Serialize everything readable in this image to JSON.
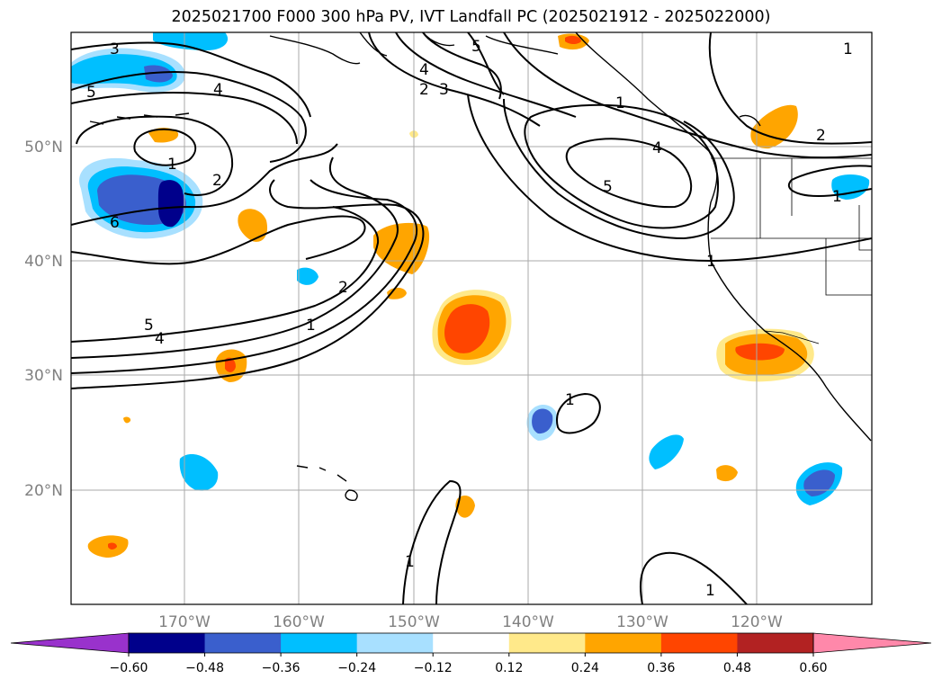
{
  "title": "2025021700 F000 300 hPa PV, IVT Landfall PC (2025021912 - 2025022000)",
  "map": {
    "lon_range": [
      -180,
      -110
    ],
    "lat_range": [
      10,
      60
    ],
    "lon_ticks": [
      "170°W",
      "160°W",
      "150°W",
      "140°W",
      "130°W",
      "120°W"
    ],
    "lat_ticks": [
      "50°N",
      "40°N",
      "30°N",
      "20°N"
    ],
    "grid": true,
    "contour_labels": [
      "3",
      "5",
      "4",
      "2",
      "3",
      "5",
      "4",
      "1",
      "5",
      "4",
      "1",
      "2",
      "6",
      "2",
      "5",
      "4",
      "1",
      "1",
      "2",
      "1",
      "1",
      "1",
      "1",
      "1"
    ]
  },
  "colorbar": {
    "levels": [
      "−0.60",
      "−0.48",
      "−0.36",
      "−0.24",
      "−0.12",
      "0.12",
      "0.24",
      "0.36",
      "0.48",
      "0.60"
    ],
    "colors": [
      "#9932cc",
      "#00008b",
      "#3a5fcd",
      "#00bfff",
      "#a8e0ff",
      "#ffffff",
      "#ffe98a",
      "#ffa500",
      "#ff4500",
      "#b22222",
      "#ff88aa"
    ],
    "extend": "both"
  }
}
